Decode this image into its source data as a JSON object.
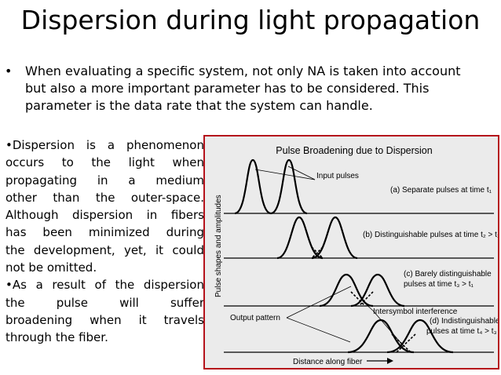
{
  "slide": {
    "title": "Dispersion during light propagation",
    "bullet": {
      "marker": "•",
      "lines": [
        "When evaluating a specific system, not only NA is taken into account",
        "but also a more important parameter has to be considered. This",
        "parameter is the data rate that the system can handle."
      ]
    },
    "side_text": {
      "lines": [
        "•Dispersion is a phenomenon",
        "occurs to the light when",
        "propagating in a medium",
        "other than the outer-space.",
        "Although dispersion in fibers",
        "has been minimized during",
        "the development, yet, it could",
        "not be omitted.",
        "•As a result of the dispersion",
        "the pulse will suffer",
        "broadening when it travels",
        "through the fiber."
      ]
    }
  },
  "figure": {
    "title": "Pulse Broadening due to Dispersion",
    "ylabel": "Pulse shapes and amplitudes",
    "xlabel": "Distance along fiber",
    "labels": {
      "input": "Input pulses",
      "a": "(a) Separate pulses at time t₁",
      "b": "(b) Distinguishable pulses at time t₂ > t₁",
      "c1": "(c) Barely distinguishable",
      "c2": "pulses at time t₃ > t₁",
      "output": "Output pattern",
      "isi": "Intersymbol interference",
      "d1": "(d) Indistinguishable",
      "d2": "pulses at time t₄ > t₃"
    },
    "colors": {
      "border": "#b5121b",
      "background": "#ebebeb"
    }
  }
}
